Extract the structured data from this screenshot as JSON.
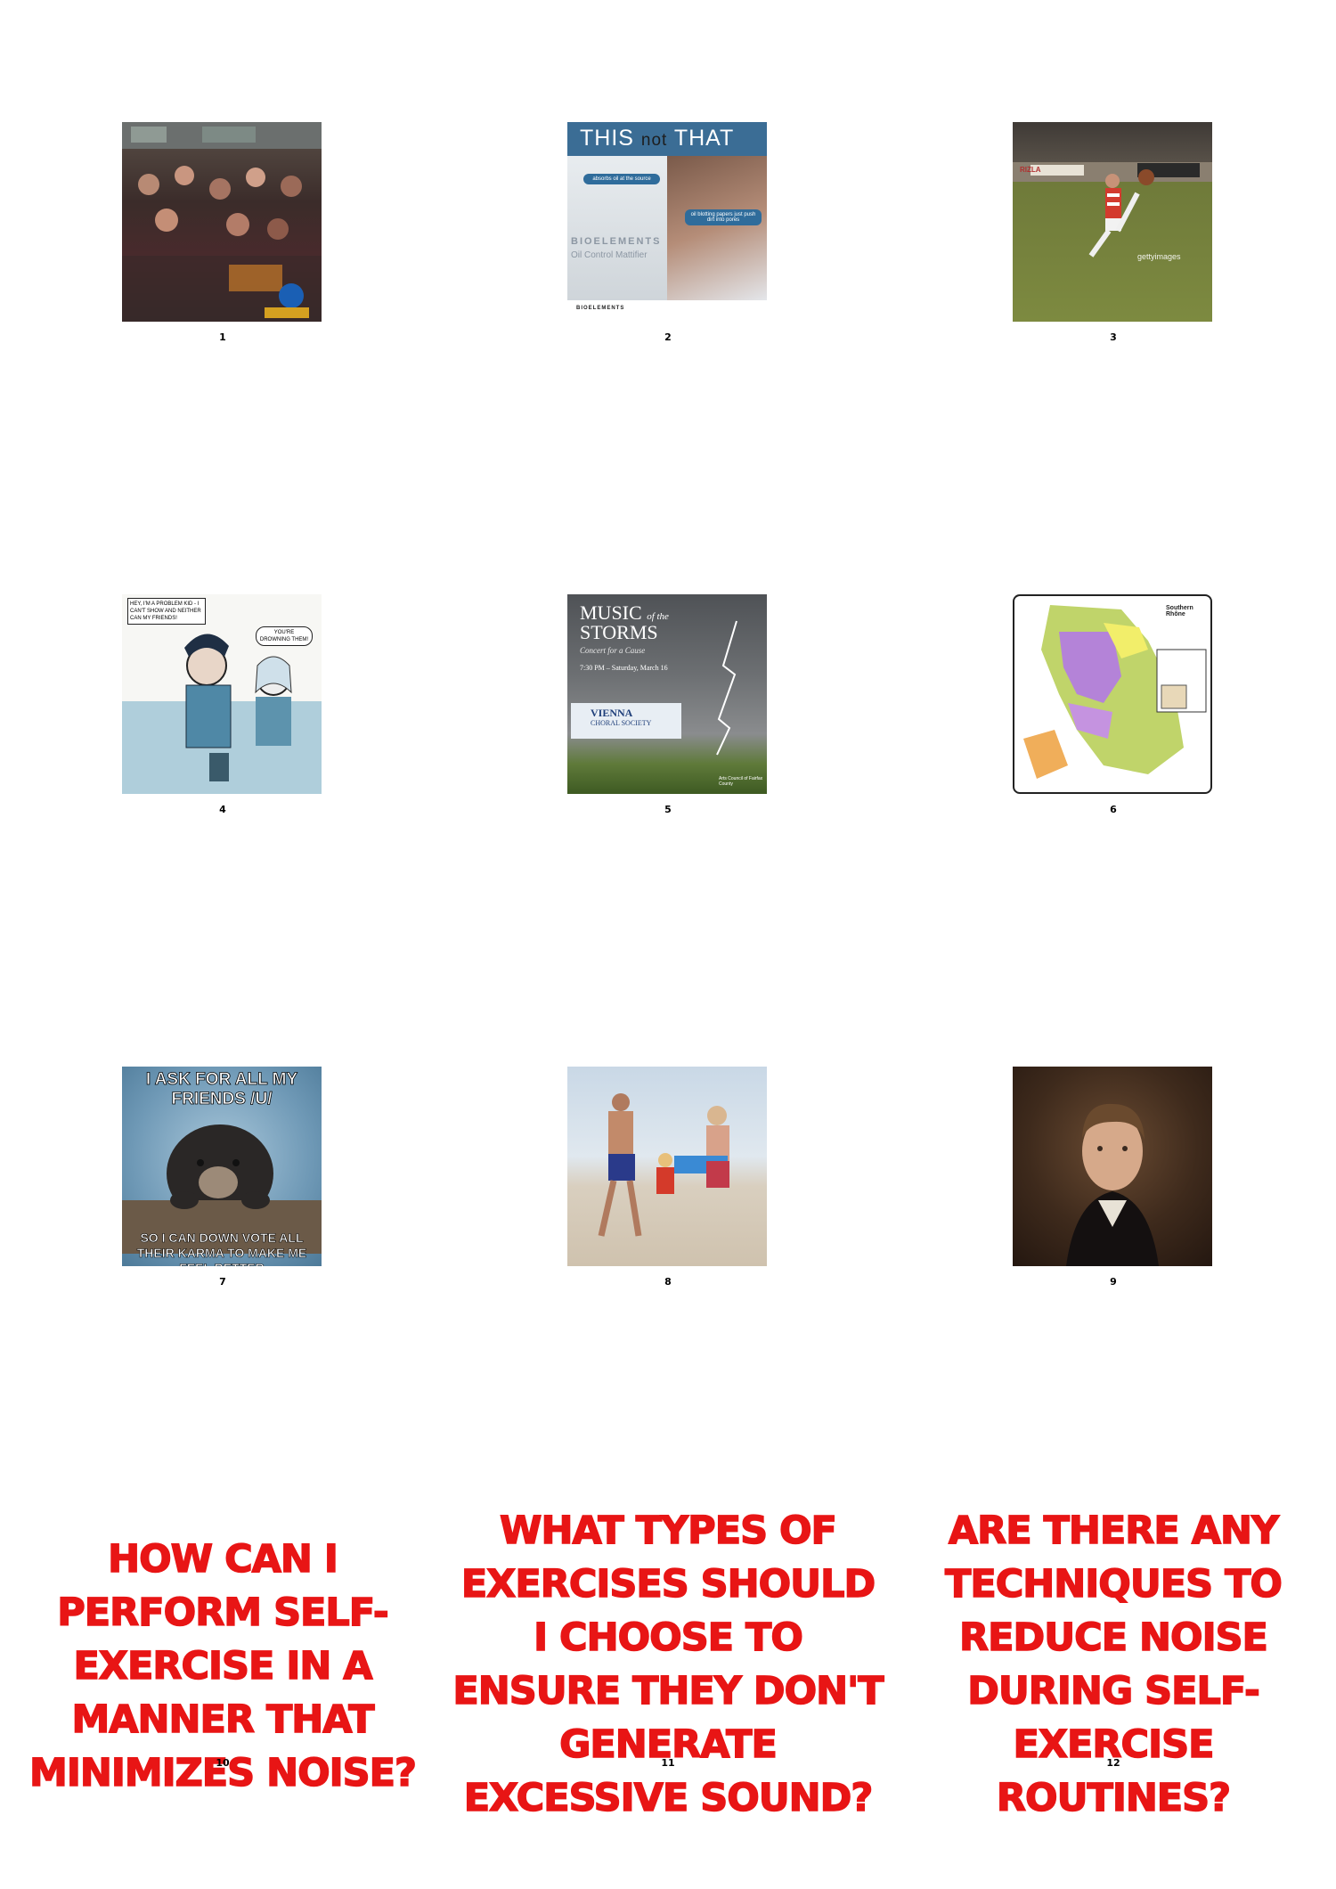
{
  "cells": [
    {
      "number": "1"
    },
    {
      "number": "2",
      "ad": {
        "headline_this": "THIS",
        "headline_not": "not",
        "headline_that": "THAT",
        "bubble1": "absorbs oil at the source",
        "bubble2": "oil blotting papers just push dirt into pores",
        "brand": "BIOELEMENTS",
        "product": "Oil Control Mattifier"
      }
    },
    {
      "number": "3",
      "photo": {
        "banner": "RIZLA",
        "watermark": "gettyimages"
      }
    },
    {
      "number": "4",
      "comic": {
        "bubble1": "HEY, I'M A PROBLEM KID - I CAN'T SHOW AND NEITHER CAN MY FRIENDS!",
        "bubble2": "YOU'RE DROWNING THEM!"
      }
    },
    {
      "number": "5",
      "poster": {
        "title_line1": "MUSIC",
        "title_of": "of the",
        "title_line2": "STORMS",
        "subtitle": "Concert for a Cause",
        "date": "7:30 PM – Saturday, March 16",
        "org": "VIENNA",
        "org2": "CHORAL SOCIETY",
        "sponsor": "Arts Council of Fairfax County"
      }
    },
    {
      "number": "6",
      "map": {
        "title": "Southern Rhône"
      }
    },
    {
      "number": "7",
      "meme": {
        "top": "I ASK FOR ALL MY FRIENDS /U/",
        "bottom": "SO I CAN DOWN VOTE ALL THEIR KARMA TO MAKE ME FEEL BETTER"
      }
    },
    {
      "number": "8"
    },
    {
      "number": "9"
    }
  ],
  "questions": [
    {
      "number": "10",
      "text": "HOW CAN I PERFORM SELF-EXERCISE IN A MANNER THAT MINIMIZES NOISE?"
    },
    {
      "number": "11",
      "text": "WHAT TYPES OF EXERCISES SHOULD I CHOOSE TO ENSURE THEY DON'T GENERATE EXCESSIVE SOUND?"
    },
    {
      "number": "12",
      "text": "ARE THERE ANY TECHNIQUES TO REDUCE NOISE DURING SELF-EXERCISE ROUTINES?"
    }
  ],
  "colors": {
    "question_text": "#e81515",
    "background": "#ffffff"
  }
}
